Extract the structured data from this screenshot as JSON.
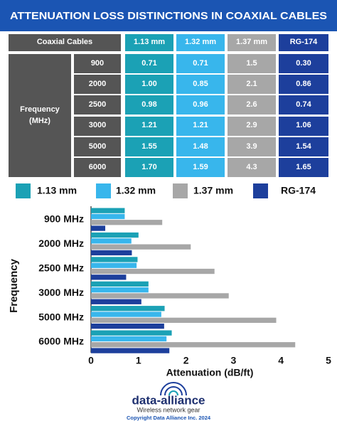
{
  "title": "ATTENUATION LOSS DISTINCTIONS IN COAXIAL CABLES",
  "table": {
    "header": [
      "Coaxial Cables",
      "1.13 mm",
      "1.32 mm",
      "1.37 mm",
      "RG-174"
    ],
    "row_label": "Frequency (MHz)",
    "rows": [
      [
        "900",
        "0.71",
        "0.71",
        "1.5",
        "0.30"
      ],
      [
        "2000",
        "1.00",
        "0.85",
        "2.1",
        "0.86"
      ],
      [
        "2500",
        "0.98",
        "0.96",
        "2.6",
        "0.74"
      ],
      [
        "3000",
        "1.21",
        "1.21",
        "2.9",
        "1.06"
      ],
      [
        "5000",
        "1.55",
        "1.48",
        "3.9",
        "1.54"
      ],
      [
        "6000",
        "1.70",
        "1.59",
        "4.3",
        "1.65"
      ]
    ]
  },
  "chart_data": {
    "type": "hbar",
    "categories": [
      "900 MHz",
      "2000 MHz",
      "2500 MHz",
      "3000 MHz",
      "5000 MHz",
      "6000 MHz"
    ],
    "series": [
      {
        "name": "1.13 mm",
        "color": "#1ba1b5",
        "values": [
          0.71,
          1.0,
          0.98,
          1.21,
          1.55,
          1.7
        ]
      },
      {
        "name": "1.32 mm",
        "color": "#38b6ec",
        "values": [
          0.71,
          0.85,
          0.96,
          1.21,
          1.48,
          1.59
        ]
      },
      {
        "name": "1.37 mm",
        "color": "#a7a7a7",
        "values": [
          1.5,
          2.1,
          2.6,
          2.9,
          3.9,
          4.3
        ]
      },
      {
        "name": "RG-174",
        "color": "#1d3f9c",
        "values": [
          0.3,
          0.86,
          0.74,
          1.06,
          1.54,
          1.65
        ]
      }
    ],
    "xlabel": "Attenuation (dB/ft)",
    "ylabel": "Frequency",
    "xlim": [
      0,
      5
    ],
    "xticks": [
      0,
      1,
      2,
      3,
      4,
      5
    ],
    "grid": false
  },
  "footer": {
    "logo": "data-alliance",
    "tagline": "Wireless network gear",
    "copyright": "Copyright Data Alliance Inc. 2024"
  }
}
